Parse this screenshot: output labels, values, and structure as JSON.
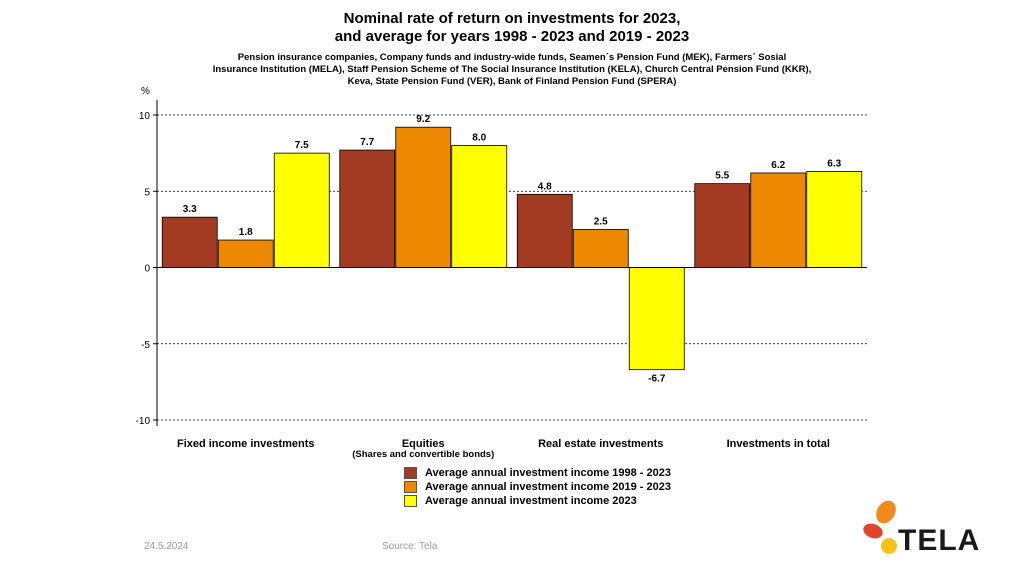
{
  "slide": {
    "title_line1": "Nominal rate of return on investments for 2023,",
    "title_line2": "and average for years 1998 - 2023 and 2019 - 2023",
    "subtitle_line1": "Pension insurance companies, Company funds and industry-wide funds, Seamen´s Pension Fund (MEK), Farmers´ Sosial",
    "subtitle_line2": "Insurance Institution (MELA),  Staff Pension Scheme of The Social Insurance Institution (KELA), Church Central Pension Fund (KKR),",
    "subtitle_line3": "Keva, State Pension Fund (VER), Bank of Finland Pension Fund (SPERA)",
    "footer_date": "24.5.2024",
    "footer_source": "Source: Tela",
    "logo_text": "TELA"
  },
  "colors": {
    "series1": "#A33B22",
    "series2": "#EE8800",
    "series3": "#FFFF00",
    "logo_orange": "#F08A1C",
    "logo_red": "#E0442A",
    "logo_yellow": "#F7C31B"
  },
  "chart_data": {
    "type": "bar",
    "title": "Nominal rate of return on investments for 2023, and average for years 1998 - 2023 and 2019 - 2023",
    "ylabel": "%",
    "ylim": [
      -10,
      10
    ],
    "yticks": [
      -10,
      -5,
      0,
      5,
      10
    ],
    "grid": true,
    "legend_position": "bottom",
    "categories": [
      "Fixed income investments",
      "Equities",
      "Real estate investments",
      "Investments  in total"
    ],
    "category_sublabels": [
      "",
      "(Shares and convertible bonds)",
      "",
      ""
    ],
    "series": [
      {
        "name": "Average annual investment income 1998 - 2023",
        "values": [
          3.3,
          7.7,
          4.8,
          5.5
        ]
      },
      {
        "name": "Average annual investment income 2019 - 2023",
        "values": [
          1.8,
          9.2,
          2.5,
          6.2
        ]
      },
      {
        "name": "Average annual investment income 2023",
        "values": [
          7.5,
          8.0,
          -6.7,
          6.3
        ]
      }
    ]
  }
}
